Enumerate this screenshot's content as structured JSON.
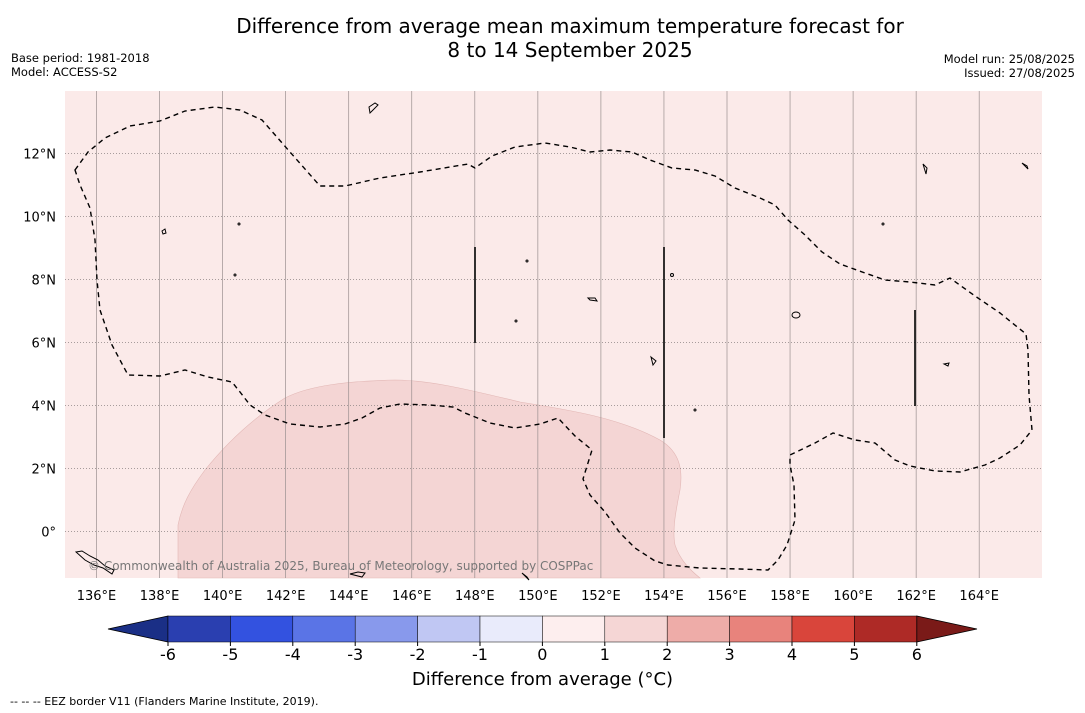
{
  "header": {
    "title_line1": "Difference from average mean maximum temperature forecast for",
    "title_line2": "8 to 14 September 2025",
    "base_period": "Base period: 1981-2018",
    "model": "Model: ACCESS-S2",
    "model_run": "Model run: 25/08/2025",
    "issued": "Issued: 27/08/2025"
  },
  "map": {
    "background_color": "#fbeae9",
    "anomaly_patch_color": "#f4d5d4",
    "longitude_ticks": [
      "136°E",
      "138°E",
      "140°E",
      "142°E",
      "144°E",
      "146°E",
      "148°E",
      "150°E",
      "152°E",
      "154°E",
      "156°E",
      "158°E",
      "160°E",
      "162°E",
      "164°E"
    ],
    "latitude_ticks": [
      "12°N",
      "10°N",
      "8°N",
      "6°N",
      "4°N",
      "2°N",
      "0°"
    ],
    "copyright": "© Commonwealth of Australia 2025, Bureau of Meteorology, supported by COSPPac"
  },
  "colorbar": {
    "label": "Difference from average (°C)",
    "tick_labels": [
      "-6",
      "-5",
      "-4",
      "-3",
      "-2",
      "-1",
      "0",
      "1",
      "2",
      "3",
      "4",
      "5",
      "6"
    ],
    "colors": [
      "#1a2f86",
      "#2a3fb0",
      "#3352e0",
      "#5a74e6",
      "#8899ec",
      "#c0c7f3",
      "#e9ebfb",
      "#fdeeee",
      "#f5d6d5",
      "#eeaca8",
      "#e8837c",
      "#d9453b",
      "#ae2a26",
      "#7a1a18"
    ]
  },
  "footnote": "-- -- -- EEZ border V11 (Flanders Marine Institute, 2019)."
}
